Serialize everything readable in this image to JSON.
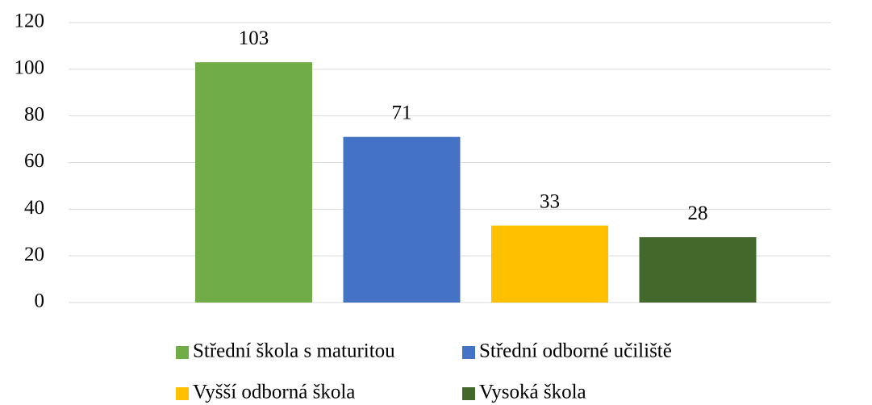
{
  "chart_data": {
    "type": "bar",
    "categories": [
      null
    ],
    "series": [
      {
        "name": "Střední škola s maturitou",
        "color": "#70ad47",
        "values": [
          103
        ]
      },
      {
        "name": "Střední odborné učiliště",
        "color": "#4472c4",
        "values": [
          71
        ]
      },
      {
        "name": "Vyšší odborná škola",
        "color": "#ffc000",
        "values": [
          33
        ]
      },
      {
        "name": "Vysoká škola",
        "color": "#43682b",
        "values": [
          28
        ]
      }
    ],
    "ylim": [
      0,
      120
    ],
    "yticks": [
      0,
      20,
      40,
      60,
      80,
      100,
      120
    ],
    "grid": true,
    "legend": "bottom"
  }
}
